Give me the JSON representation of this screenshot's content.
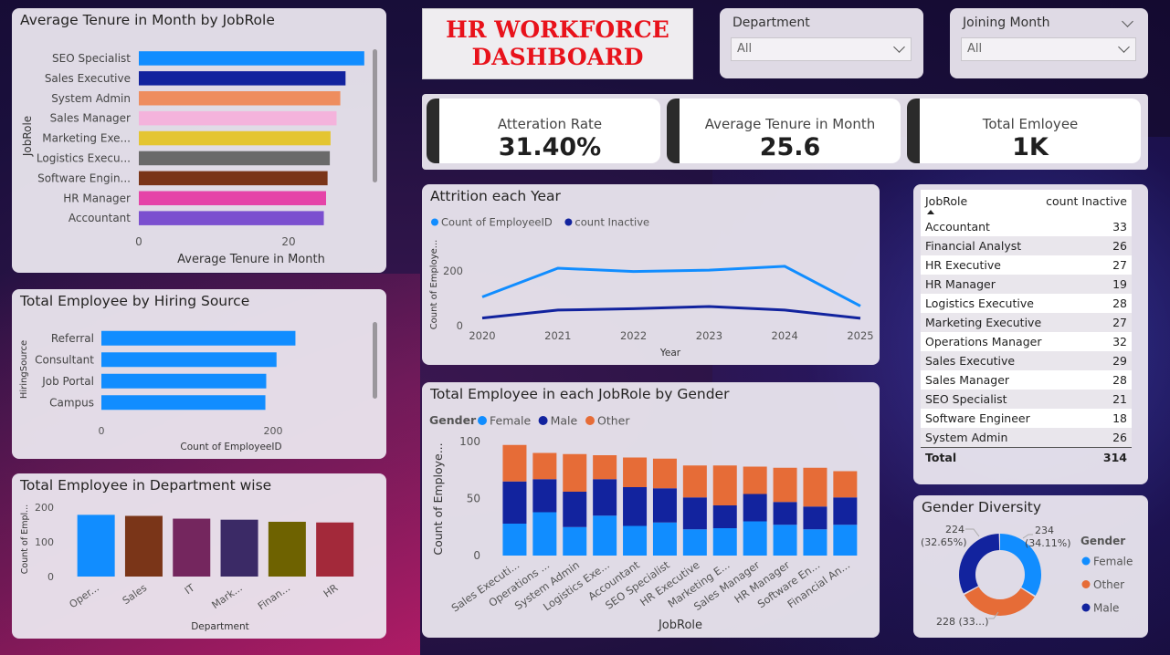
{
  "colors": {
    "bar_blue": "#118DFF",
    "dark_blue": "#12239E",
    "orange": "#E66C37",
    "title_red": "#E8121B"
  },
  "dashboard_title": "HR WORKFORCE\nDASHBOARD",
  "filters": {
    "department": {
      "label": "Department",
      "value": "All"
    },
    "joining_month": {
      "label": "Joining Month",
      "value": "All"
    }
  },
  "kpis": [
    {
      "label": "Atteration Rate",
      "value": "31.40%"
    },
    {
      "label": "Average Tenure in Month",
      "value": "25.6"
    },
    {
      "label": "Total Emloyee",
      "value": "1K"
    }
  ],
  "table": {
    "headers": [
      "JobRole",
      "count Inactive"
    ],
    "rows": [
      {
        "role": "Accountant",
        "count": "33"
      },
      {
        "role": "Financial Analyst",
        "count": "26"
      },
      {
        "role": "HR Executive",
        "count": "27"
      },
      {
        "role": "HR Manager",
        "count": "19"
      },
      {
        "role": "Logistics Executive",
        "count": "28"
      },
      {
        "role": "Marketing Executive",
        "count": "27"
      },
      {
        "role": "Operations Manager",
        "count": "32"
      },
      {
        "role": "Sales Executive",
        "count": "29"
      },
      {
        "role": "Sales Manager",
        "count": "28"
      },
      {
        "role": "SEO Specialist",
        "count": "21"
      },
      {
        "role": "Software Engineer",
        "count": "18"
      },
      {
        "role": "System Admin",
        "count": "26"
      }
    ],
    "total_label": "Total",
    "total_value": "314"
  },
  "chart_data": [
    {
      "id": "tenure",
      "type": "bar",
      "orientation": "horizontal",
      "title": "Average Tenure in Month by JobRole",
      "xlabel": "Average Tenure in Month",
      "ylabel": "JobRole",
      "categories": [
        "SEO Specialist",
        "Sales Executive",
        "System Admin",
        "Sales Manager",
        "Marketing Exe...",
        "Logistics Execu...",
        "Software Engin...",
        "HR Manager",
        "Accountant"
      ],
      "values": [
        30.1,
        27.6,
        26.9,
        26.4,
        25.6,
        25.5,
        25.2,
        25.0,
        24.7
      ],
      "colors": [
        "#118DFF",
        "#12239E",
        "#E66C37",
        "#F4A9D8",
        "#E0C12B",
        "#6B6B6B",
        "#744EC2"
      ],
      "bar_colors": [
        "#118DFF",
        "#12239E",
        "#EE8D5F",
        "#F4B3DC",
        "#E4C532",
        "#6A6A6A",
        "#7A3518",
        "#E544A8",
        "#7B4FCF"
      ],
      "xlim": [
        0,
        30
      ],
      "xticks": [
        "0",
        "20"
      ],
      "grid": false
    },
    {
      "id": "hiring",
      "type": "bar",
      "orientation": "horizontal",
      "title": "Total Employee by Hiring Source",
      "xlabel": "Count of EmployeeID",
      "ylabel": "HiringSource",
      "categories": [
        "Referral",
        "Consultant",
        "Job Portal",
        "Campus"
      ],
      "values": [
        226,
        204,
        192,
        191
      ],
      "xlim": [
        0,
        300
      ],
      "xticks": [
        "0",
        "200"
      ],
      "grid": false
    },
    {
      "id": "department",
      "type": "bar",
      "title": "Total Employee in Department wise",
      "xlabel": "Department",
      "ylabel": "Count of Empl...",
      "categories": [
        "Oper...",
        "Sales",
        "IT",
        "Mark...",
        "Finan...",
        "HR"
      ],
      "values": [
        178,
        175,
        167,
        164,
        158,
        156
      ],
      "bar_colors": [
        "#118DFF",
        "#7A3518",
        "#74265E",
        "#3B2A66",
        "#6E6200",
        "#A3293A"
      ],
      "ylim": [
        0,
        200
      ],
      "yticks": [
        "0",
        "100",
        "200"
      ],
      "grid": false
    },
    {
      "id": "attrition",
      "type": "line",
      "title": "Attrition each Year",
      "xlabel": "Year",
      "ylabel": "Count of Employe...",
      "x": [
        "2020",
        "2021",
        "2022",
        "2023",
        "2024",
        "2025"
      ],
      "series": [
        {
          "name": "Count of EmployeeID",
          "color": "#118DFF",
          "values": [
            105,
            210,
            198,
            203,
            217,
            72
          ]
        },
        {
          "name": "count Inactive",
          "color": "#12239E",
          "values": [
            28,
            57,
            62,
            70,
            57,
            27
          ]
        }
      ],
      "ylim": [
        0,
        300
      ],
      "yticks": [
        "0",
        "200"
      ],
      "legend": "top-left",
      "grid": false
    },
    {
      "id": "gender_role",
      "type": "bar",
      "stacked": true,
      "title": "Total Employee in each JobRole by Gender",
      "xlabel": "JobRole",
      "ylabel": "Count of Employe...",
      "legend_title": "Gender",
      "categories": [
        "Sales Executi...",
        "Operations ...",
        "System Admin",
        "Logistics Exe...",
        "Accountant",
        "SEO Specialist",
        "HR Executive",
        "Marketing E...",
        "Sales Manager",
        "HR Manager",
        "Software En...",
        "Financial An..."
      ],
      "series": [
        {
          "name": "Female",
          "color": "#118DFF",
          "values": [
            28,
            38,
            25,
            35,
            26,
            29,
            23,
            24,
            30,
            27,
            23,
            27
          ]
        },
        {
          "name": "Male",
          "color": "#12239E",
          "values": [
            37,
            29,
            31,
            32,
            34,
            30,
            28,
            20,
            24,
            20,
            20,
            24
          ]
        },
        {
          "name": "Other",
          "color": "#E66C37",
          "values": [
            32,
            23,
            33,
            21,
            26,
            26,
            28,
            35,
            24,
            30,
            34,
            23
          ]
        }
      ],
      "ylim": [
        0,
        100
      ],
      "yticks": [
        "0",
        "50",
        "100"
      ],
      "legend": "top-left",
      "grid": false
    },
    {
      "id": "gender_diversity",
      "type": "pie",
      "donut": true,
      "title": "Gender Diversity",
      "legend_title": "Gender",
      "slices": [
        {
          "name": "Female",
          "value": 234,
          "percent": 34.11,
          "color": "#118DFF",
          "label": "234\n(34.11%)"
        },
        {
          "name": "Other",
          "value": 228,
          "percent": 33.24,
          "color": "#E66C37",
          "label": "228 (33...)"
        },
        {
          "name": "Male",
          "value": 224,
          "percent": 32.65,
          "color": "#12239E",
          "label": "224\n(32.65%)"
        }
      ],
      "legend": "right"
    }
  ]
}
